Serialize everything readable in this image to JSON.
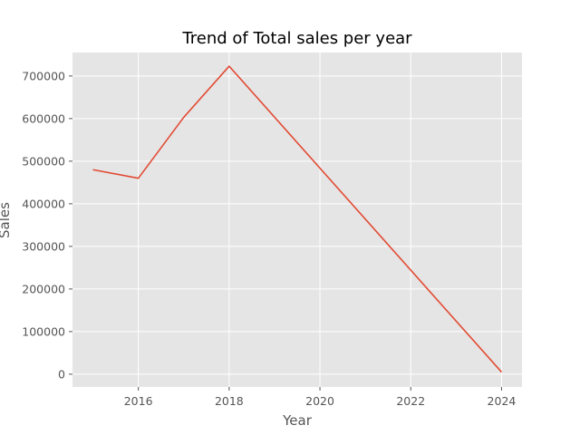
{
  "chart_data": {
    "type": "line",
    "title": "Trend of Total sales per year",
    "xlabel": "Year",
    "ylabel": "Sales",
    "xlim": [
      2014.55,
      2024.45
    ],
    "ylim": [
      -30000,
      755000
    ],
    "xticks": [
      2016,
      2018,
      2020,
      2022,
      2024
    ],
    "yticks": [
      0,
      100000,
      200000,
      300000,
      400000,
      500000,
      600000,
      700000
    ],
    "grid": true,
    "series": [
      {
        "color": "#e24a33",
        "x": [
          2015,
          2016,
          2017,
          2018,
          2024
        ],
        "y": [
          480000,
          460000,
          603000,
          723000,
          5000
        ]
      }
    ]
  }
}
